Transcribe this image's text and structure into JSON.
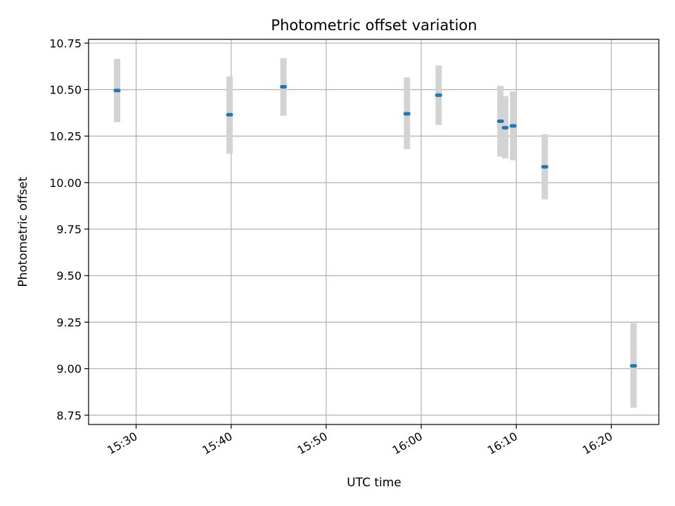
{
  "chart_data": {
    "type": "scatter",
    "title": "Photometric offset variation",
    "xlabel": "UTC time",
    "ylabel": "Photometric offset",
    "x_unit": "time",
    "xlim": [
      "15:25",
      "16:25"
    ],
    "ylim": [
      8.7,
      10.77
    ],
    "grid": true,
    "x_ticks": [
      "15:30",
      "15:40",
      "15:50",
      "16:00",
      "16:10",
      "16:20"
    ],
    "y_ticks": [
      "8.75",
      "9.00",
      "9.25",
      "9.50",
      "9.75",
      "10.00",
      "10.25",
      "10.50",
      "10.75"
    ],
    "colors": {
      "points": "#1f77b4",
      "errorbars": "#d3d3d3",
      "grid": "#b0b0b0"
    },
    "points": [
      {
        "x": "15:28:00",
        "y": 10.495,
        "err_low": 10.325,
        "err_high": 10.665
      },
      {
        "x": "15:39:50",
        "y": 10.365,
        "err_low": 10.155,
        "err_high": 10.57
      },
      {
        "x": "15:45:30",
        "y": 10.515,
        "err_low": 10.36,
        "err_high": 10.67
      },
      {
        "x": "15:58:30",
        "y": 10.37,
        "err_low": 10.18,
        "err_high": 10.565
      },
      {
        "x": "16:01:50",
        "y": 10.47,
        "err_low": 10.31,
        "err_high": 10.63
      },
      {
        "x": "16:08:20",
        "y": 10.33,
        "err_low": 10.14,
        "err_high": 10.52
      },
      {
        "x": "16:08:50",
        "y": 10.295,
        "err_low": 10.13,
        "err_high": 10.465
      },
      {
        "x": "16:09:40",
        "y": 10.305,
        "err_low": 10.12,
        "err_high": 10.49
      },
      {
        "x": "16:13:00",
        "y": 10.085,
        "err_low": 9.91,
        "err_high": 10.26
      },
      {
        "x": "16:22:20",
        "y": 9.015,
        "err_low": 8.79,
        "err_high": 9.245
      }
    ]
  }
}
